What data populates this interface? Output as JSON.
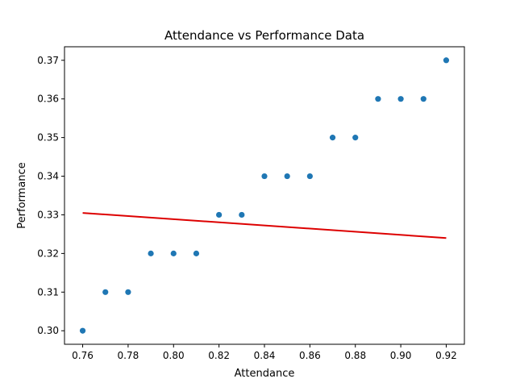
{
  "chart_data": {
    "type": "scatter",
    "title": "Attendance vs Performance Data",
    "xlabel": "Attendance",
    "ylabel": "Performance",
    "xlim": [
      0.752,
      0.928
    ],
    "ylim": [
      0.2965,
      0.3735
    ],
    "xticks": [
      "0.76",
      "0.78",
      "0.80",
      "0.82",
      "0.84",
      "0.86",
      "0.88",
      "0.90",
      "0.92"
    ],
    "yticks": [
      "0.30",
      "0.31",
      "0.32",
      "0.33",
      "0.34",
      "0.35",
      "0.36",
      "0.37"
    ],
    "grid": false,
    "points": [
      {
        "x": 0.76,
        "y": 0.3
      },
      {
        "x": 0.77,
        "y": 0.31
      },
      {
        "x": 0.78,
        "y": 0.31
      },
      {
        "x": 0.79,
        "y": 0.32
      },
      {
        "x": 0.8,
        "y": 0.32
      },
      {
        "x": 0.81,
        "y": 0.32
      },
      {
        "x": 0.82,
        "y": 0.33
      },
      {
        "x": 0.83,
        "y": 0.33
      },
      {
        "x": 0.84,
        "y": 0.34
      },
      {
        "x": 0.85,
        "y": 0.34
      },
      {
        "x": 0.86,
        "y": 0.34
      },
      {
        "x": 0.87,
        "y": 0.35
      },
      {
        "x": 0.88,
        "y": 0.35
      },
      {
        "x": 0.89,
        "y": 0.36
      },
      {
        "x": 0.9,
        "y": 0.36
      },
      {
        "x": 0.91,
        "y": 0.36
      },
      {
        "x": 0.92,
        "y": 0.37
      }
    ],
    "trend_line": {
      "x": [
        0.76,
        0.92
      ],
      "y": [
        0.3305,
        0.324
      ]
    },
    "colors": {
      "points": "#1f77b4",
      "trend_line": "#dd0000"
    }
  }
}
